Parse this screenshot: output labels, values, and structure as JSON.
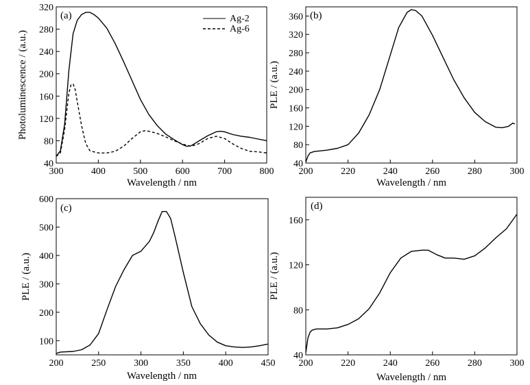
{
  "chart_data": [
    {
      "type": "line",
      "panel_label": "(a)",
      "xlabel": "Wavelength / nm",
      "ylabel": "Photoluminescence / (a.u.)",
      "xlim": [
        300,
        800
      ],
      "ylim": [
        40,
        320
      ],
      "xticks": [
        300,
        400,
        500,
        600,
        700,
        800
      ],
      "yticks": [
        40,
        80,
        120,
        160,
        200,
        240,
        280,
        320
      ],
      "grid": false,
      "legend": "top-right",
      "series": [
        {
          "name": "Ag-2",
          "style": "solid",
          "x": [
            300,
            310,
            320,
            330,
            340,
            350,
            360,
            370,
            380,
            390,
            400,
            420,
            440,
            460,
            480,
            500,
            520,
            540,
            560,
            580,
            600,
            610,
            620,
            640,
            660,
            680,
            690,
            700,
            720,
            740,
            760,
            780,
            800
          ],
          "y": [
            52,
            62,
            110,
            205,
            272,
            296,
            306,
            310,
            310,
            306,
            300,
            282,
            254,
            222,
            188,
            154,
            127,
            107,
            92,
            82,
            73,
            70,
            71,
            80,
            89,
            96,
            97,
            96,
            91,
            88,
            86,
            83,
            80
          ]
        },
        {
          "name": "Ag-6",
          "style": "dashed",
          "x": [
            300,
            310,
            320,
            330,
            335,
            340,
            345,
            350,
            360,
            370,
            380,
            400,
            420,
            440,
            460,
            480,
            500,
            510,
            520,
            540,
            560,
            580,
            600,
            620,
            640,
            660,
            680,
            700,
            720,
            740,
            760,
            780,
            800
          ],
          "y": [
            52,
            58,
            100,
            165,
            180,
            182,
            172,
            150,
            108,
            75,
            62,
            58,
            58,
            61,
            70,
            84,
            96,
            98,
            97,
            93,
            87,
            80,
            74,
            70,
            75,
            84,
            88,
            84,
            74,
            66,
            61,
            60,
            58
          ]
        }
      ]
    },
    {
      "type": "line",
      "panel_label": "(b)",
      "xlabel": "Wavelength / nm",
      "ylabel": "PLE / (a.u.)",
      "xlim": [
        200,
        300
      ],
      "ylim": [
        40,
        380
      ],
      "xticks": [
        200,
        220,
        240,
        260,
        280,
        300
      ],
      "yticks": [
        40,
        80,
        120,
        160,
        200,
        240,
        280,
        320,
        360
      ],
      "grid": false,
      "series": [
        {
          "style": "solid",
          "x": [
            200,
            201,
            202,
            204,
            210,
            215,
            220,
            225,
            230,
            235,
            240,
            244,
            248,
            250,
            252,
            255,
            260,
            265,
            270,
            275,
            280,
            285,
            290,
            293,
            296,
            298,
            299
          ],
          "y": [
            42,
            55,
            62,
            65,
            68,
            72,
            80,
            105,
            145,
            200,
            275,
            335,
            368,
            374,
            372,
            360,
            318,
            270,
            222,
            182,
            150,
            130,
            118,
            117,
            120,
            127,
            125
          ]
        }
      ]
    },
    {
      "type": "line",
      "panel_label": "(c)",
      "xlabel": "Wavelength / nm",
      "ylabel": "PLE / (a.u.)",
      "xlim": [
        200,
        450
      ],
      "ylim": [
        50,
        600
      ],
      "xticks": [
        200,
        250,
        300,
        350,
        400,
        450
      ],
      "yticks": [
        100,
        200,
        300,
        400,
        500,
        600
      ],
      "grid": false,
      "series": [
        {
          "style": "solid",
          "x": [
            200,
            205,
            220,
            230,
            240,
            250,
            260,
            270,
            280,
            290,
            300,
            310,
            315,
            320,
            325,
            330,
            335,
            340,
            350,
            360,
            370,
            380,
            390,
            400,
            410,
            420,
            430,
            440,
            450
          ],
          "y": [
            55,
            60,
            62,
            68,
            85,
            125,
            210,
            290,
            350,
            400,
            415,
            450,
            480,
            520,
            555,
            555,
            530,
            470,
            340,
            220,
            160,
            120,
            95,
            82,
            78,
            76,
            78,
            82,
            88
          ]
        }
      ]
    },
    {
      "type": "line",
      "panel_label": "(d)",
      "xlabel": "Wavelength / nm",
      "ylabel": "PLE / (a.u.)",
      "xlim": [
        200,
        300
      ],
      "ylim": [
        40,
        180
      ],
      "xticks": [
        200,
        220,
        240,
        260,
        280,
        300
      ],
      "yticks": [
        40,
        80,
        120,
        160
      ],
      "grid": false,
      "series": [
        {
          "style": "solid",
          "x": [
            200,
            201,
            202,
            203,
            205,
            210,
            215,
            220,
            225,
            230,
            235,
            240,
            245,
            250,
            255,
            258,
            262,
            266,
            270,
            275,
            280,
            285,
            290,
            295,
            300
          ],
          "y": [
            42,
            55,
            60,
            62,
            63,
            63,
            64,
            67,
            72,
            81,
            95,
            113,
            126,
            132,
            133,
            133,
            129,
            126,
            126,
            125,
            128,
            135,
            144,
            152,
            165
          ]
        }
      ]
    }
  ]
}
